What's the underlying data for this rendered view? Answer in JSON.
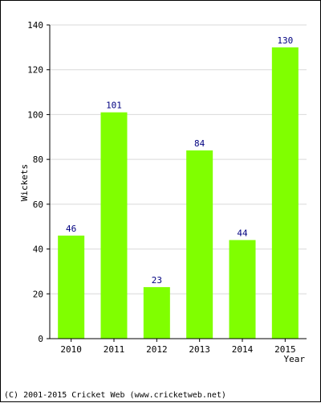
{
  "chart_data": {
    "type": "bar",
    "categories": [
      "2010",
      "2011",
      "2012",
      "2013",
      "2014",
      "2015"
    ],
    "values": [
      46,
      101,
      23,
      84,
      44,
      130
    ],
    "title": "",
    "xlabel": "Year",
    "ylabel": "Wickets",
    "ylim": [
      0,
      140
    ],
    "yticks": [
      0,
      20,
      40,
      60,
      80,
      100,
      120,
      140
    ],
    "grid": true,
    "data_labels": true,
    "bar_color": "#80ff00",
    "label_color": "#000080",
    "grid_color": "#d9d9d9"
  },
  "footer": {
    "credit": "(C) 2001-2015 Cricket Web (www.cricketweb.net)"
  }
}
